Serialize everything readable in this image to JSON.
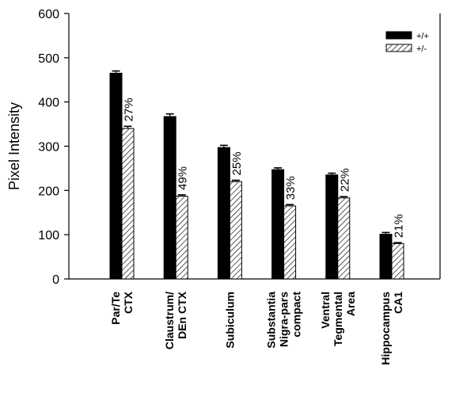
{
  "chart_data": {
    "type": "bar",
    "title": "",
    "xlabel": "",
    "ylabel": "Pixel Intensity",
    "ylim": [
      0,
      600
    ],
    "yticks": [
      0,
      100,
      200,
      300,
      400,
      500,
      600
    ],
    "grid": false,
    "legend_position": "top-right",
    "categories": [
      [
        "Par/Te",
        "CTX"
      ],
      [
        "Claustrum/",
        "DEn CTX"
      ],
      [
        "Subiculum"
      ],
      [
        "Substantia",
        "Nigra-pars",
        "compact"
      ],
      [
        "Ventral",
        "Tegmental",
        "Area"
      ],
      [
        "Hippocampus",
        "CA1"
      ]
    ],
    "series": [
      {
        "name": "+/+",
        "fill": "solid",
        "color": "#000000",
        "values": [
          465,
          367,
          297,
          247,
          235,
          101
        ],
        "errors": [
          5,
          6,
          5,
          4,
          4,
          4
        ]
      },
      {
        "name": "+/-",
        "fill": "hatched",
        "color": "#ffffff",
        "values": [
          340,
          187,
          220,
          165,
          183,
          80
        ],
        "errors": [
          5,
          3,
          3,
          3,
          3,
          2
        ]
      }
    ],
    "annotations": [
      "27%",
      "49%",
      "25%",
      "33%",
      "22%",
      "21%"
    ]
  }
}
